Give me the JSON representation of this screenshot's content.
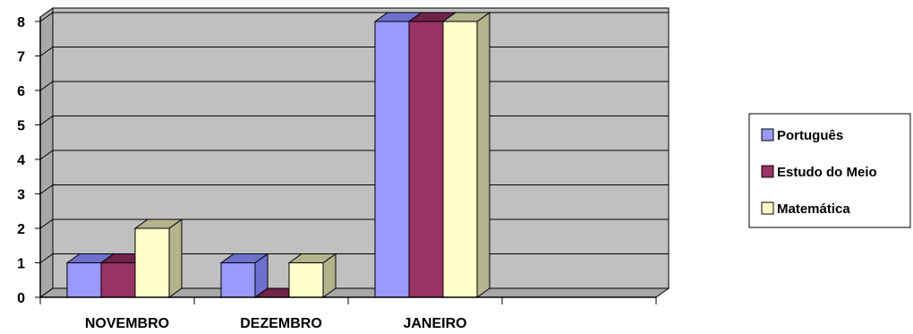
{
  "chart_data": {
    "type": "bar",
    "categories": [
      "NOVEMBRO",
      "DEZEMBRO",
      "JANEIRO",
      ""
    ],
    "series": [
      {
        "name": "Português",
        "values": [
          1,
          1,
          8,
          0
        ],
        "color": "#9999FF",
        "shade": "#6F6FCC"
      },
      {
        "name": "Estudo do Meio",
        "values": [
          1,
          0,
          8,
          0
        ],
        "color": "#993366",
        "shade": "#6E244A"
      },
      {
        "name": "Matemática",
        "values": [
          2,
          1,
          8,
          0
        ],
        "color": "#FFFFCC",
        "shade": "#B3B38E"
      }
    ],
    "yticks": [
      "0",
      "1",
      "2",
      "3",
      "4",
      "5",
      "6",
      "7",
      "8"
    ],
    "ylim": [
      0,
      8
    ],
    "grid": true,
    "legend": "right",
    "wall_color": "#C0C0C0",
    "title": "",
    "xlabel": "",
    "ylabel": ""
  }
}
